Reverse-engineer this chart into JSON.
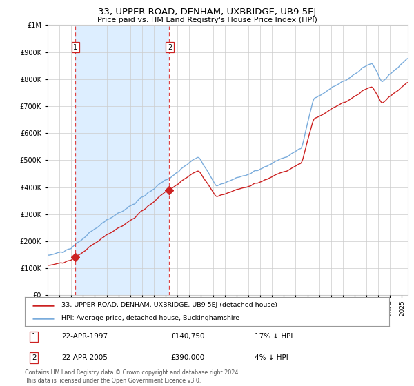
{
  "title": "33, UPPER ROAD, DENHAM, UXBRIDGE, UB9 5EJ",
  "subtitle": "Price paid vs. HM Land Registry's House Price Index (HPI)",
  "legend_line1": "33, UPPER ROAD, DENHAM, UXBRIDGE, UB9 5EJ (detached house)",
  "legend_line2": "HPI: Average price, detached house, Buckinghamshire",
  "footer": "Contains HM Land Registry data © Crown copyright and database right 2024.\nThis data is licensed under the Open Government Licence v3.0.",
  "purchase1_date": 1997.31,
  "purchase1_price": 140750,
  "purchase2_date": 2005.31,
  "purchase2_price": 390000,
  "table1": [
    "1",
    "22-APR-1997",
    "£140,750",
    "17% ↓ HPI"
  ],
  "table2": [
    "2",
    "22-APR-2005",
    "£390,000",
    "4% ↓ HPI"
  ],
  "background_color": "#ffffff",
  "shaded_region_color": "#ddeeff",
  "grid_color": "#cccccc",
  "hpi_line_color": "#7aacdc",
  "price_line_color": "#cc2222",
  "dashed_line_color": "#dd4444",
  "ylim": [
    0,
    1000000
  ],
  "xlim_start": 1995.0,
  "xlim_end": 2025.5
}
